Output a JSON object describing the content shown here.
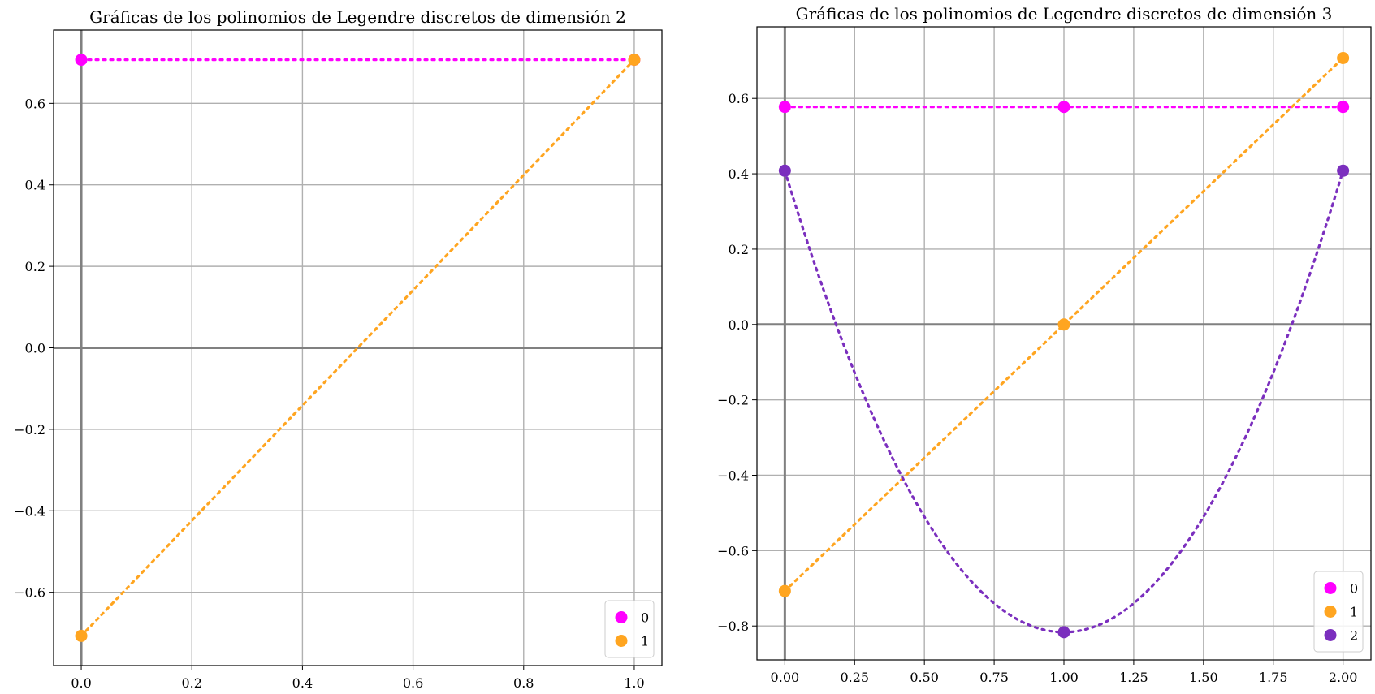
{
  "chart_data": [
    {
      "type": "scatter",
      "title": "Gráficas de los polinomios de Legendre discretos de dimensión 2",
      "xlabel": "",
      "ylabel": "",
      "xlim": [
        -0.05,
        1.05
      ],
      "ylim": [
        -0.78,
        0.78
      ],
      "xticks": [
        0.0,
        0.2,
        0.4,
        0.6,
        0.8,
        1.0
      ],
      "xtick_labels": [
        "0.0",
        "0.2",
        "0.4",
        "0.6",
        "0.8",
        "1.0"
      ],
      "yticks": [
        -0.6,
        -0.4,
        -0.2,
        0.0,
        0.2,
        0.4,
        0.6
      ],
      "ytick_labels": [
        "−0.6",
        "−0.4",
        "−0.2",
        "0.0",
        "0.2",
        "0.4",
        "0.6"
      ],
      "grid": true,
      "zero_axes": true,
      "legend_position": "lower-right",
      "series": [
        {
          "name": "0",
          "color": "#ff00ff",
          "style": "dotted",
          "curve": "linear",
          "x": [
            0,
            1
          ],
          "y": [
            0.7071,
            0.7071
          ]
        },
        {
          "name": "1",
          "color": "#ffa520",
          "style": "dotted",
          "curve": "linear",
          "x": [
            0,
            1
          ],
          "y": [
            -0.7071,
            0.7071
          ]
        }
      ]
    },
    {
      "type": "scatter",
      "title": "Gráficas de los polinomios de Legendre discretos de dimensión 3",
      "xlabel": "",
      "ylabel": "",
      "xlim": [
        -0.1,
        2.1
      ],
      "ylim": [
        -0.89,
        0.79
      ],
      "xticks": [
        0.0,
        0.25,
        0.5,
        0.75,
        1.0,
        1.25,
        1.5,
        1.75,
        2.0
      ],
      "xtick_labels": [
        "0.00",
        "0.25",
        "0.50",
        "0.75",
        "1.00",
        "1.25",
        "1.50",
        "1.75",
        "2.00"
      ],
      "yticks": [
        -0.8,
        -0.6,
        -0.4,
        -0.2,
        0.0,
        0.2,
        0.4,
        0.6
      ],
      "ytick_labels": [
        "−0.8",
        "−0.6",
        "−0.4",
        "−0.2",
        "0.0",
        "0.2",
        "0.4",
        "0.6"
      ],
      "grid": true,
      "zero_axes": true,
      "legend_position": "lower-right",
      "series": [
        {
          "name": "0",
          "color": "#ff00ff",
          "style": "dotted",
          "curve": "linear",
          "x": [
            0,
            1,
            2
          ],
          "y": [
            0.5774,
            0.5774,
            0.5774
          ]
        },
        {
          "name": "1",
          "color": "#ffa520",
          "style": "dotted",
          "curve": "linear",
          "x": [
            0,
            1,
            2
          ],
          "y": [
            -0.7071,
            0.0,
            0.7071
          ]
        },
        {
          "name": "2",
          "color": "#7b2fbe",
          "style": "dotted",
          "curve": "quadratic",
          "x": [
            0,
            1,
            2
          ],
          "y": [
            0.4082,
            -0.8165,
            0.4082
          ]
        }
      ]
    }
  ]
}
